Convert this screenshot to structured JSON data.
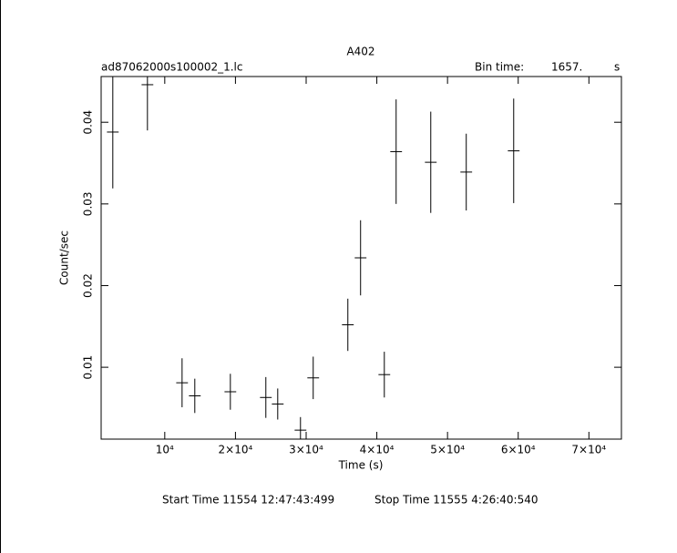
{
  "chart_data": {
    "type": "errorbar",
    "title": "A402",
    "subtitle": "ad87062000s100002_1.lc",
    "bin_time_label": "Bin time:",
    "bin_time": "1657.",
    "bin_time_unit": "s",
    "x_label": "Time (s)",
    "y_label": "Count/sec",
    "footer_start": "Start Time 11554  12:47:43:499",
    "footer_stop": "Stop Time 11555  4:26:40:540",
    "xlim": [
      1000,
      74600
    ],
    "ylim": [
      0.0012,
      0.0456
    ],
    "xticks": [
      {
        "value": 10000,
        "label": "10⁴"
      },
      {
        "value": 20000,
        "label": "2×10⁴"
      },
      {
        "value": 30000,
        "label": "3×10⁴"
      },
      {
        "value": 40000,
        "label": "4×10⁴"
      },
      {
        "value": 50000,
        "label": "5×10⁴"
      },
      {
        "value": 60000,
        "label": "6×10⁴"
      },
      {
        "value": 70000,
        "label": "7×10⁴"
      }
    ],
    "yticks": [
      0.01,
      0.02,
      0.03,
      0.04
    ],
    "color": "#000000",
    "series": [
      {
        "x": [
          2650,
          7550,
          12450,
          14250,
          19280,
          24300,
          25980,
          29200,
          31000,
          35900,
          37700,
          41060,
          42730,
          47630,
          52650,
          59360
        ],
        "values": [
          0.0388,
          0.0446,
          0.0081,
          0.0065,
          0.007,
          0.0063,
          0.0055,
          0.0023,
          0.0087,
          0.0152,
          0.0234,
          0.0091,
          0.0364,
          0.0351,
          0.0339,
          0.0365
        ],
        "yerr": [
          0.0069,
          0.0056,
          0.003,
          0.0021,
          0.0022,
          0.0025,
          0.0019,
          0.0016,
          0.0026,
          0.0032,
          0.0046,
          0.0028,
          0.0064,
          0.0062,
          0.0047,
          0.0064
        ],
        "xerr": [
          828.5,
          828.5,
          828.5,
          828.5,
          828.5,
          828.5,
          828.5,
          828.5,
          828.5,
          828.5,
          828.5,
          828.5,
          828.5,
          828.5,
          828.5,
          828.5
        ]
      }
    ]
  }
}
